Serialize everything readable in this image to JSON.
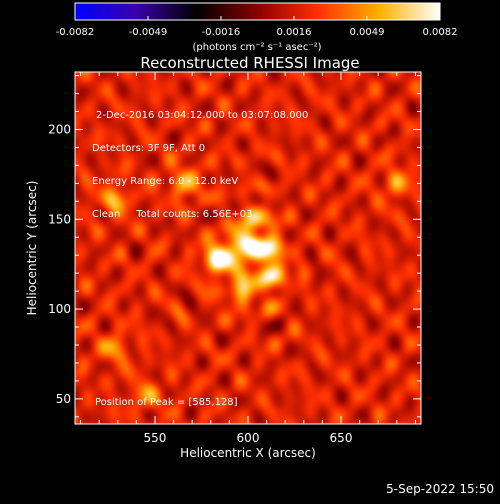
{
  "chart_data": {
    "type": "heatmap",
    "title": "Reconstructed RHESSI Image",
    "xlabel": "Heliocentric X (arcsec)",
    "ylabel": "Heliocentric Y (arcsec)",
    "xlim": [
      507,
      693
    ],
    "ylim": [
      36,
      232
    ],
    "x_ticks": [
      550,
      600,
      650
    ],
    "y_ticks": [
      50,
      100,
      150,
      200
    ],
    "grid": false,
    "colormap": "diverging blue-black-red-yellow-white",
    "colorbar": {
      "min": -0.0082,
      "max": 0.0082,
      "ticks": [
        "-0.0082",
        "-0.0049",
        "-0.0016",
        "0.0016",
        "0.0049",
        "0.0082"
      ],
      "units": "(photons cm⁻² s⁻¹ asec⁻²)",
      "stops": [
        "#0000ff",
        "#3a00aa",
        "#000000",
        "#8a0000",
        "#ff3000",
        "#ffb000",
        "#ffffff"
      ]
    },
    "annotations": [
      "2-Dec-2016 03:04:12.000 to 03:07:08.000",
      "Detectors: 3F 9F, Att 0",
      "Energy Range: 6.0 - 12.0 keV",
      "Clean     Total counts: 6.56E+03"
    ],
    "peak_text": "Position of Peak = [585,128]",
    "peak": [
      585,
      128
    ],
    "sources": [
      {
        "x": 585,
        "y": 128,
        "flux": 0.0082
      },
      {
        "x": 598,
        "y": 136,
        "flux": 0.006
      },
      {
        "x": 610,
        "y": 133,
        "flux": 0.0064
      },
      {
        "x": 612,
        "y": 118,
        "flux": 0.0052
      },
      {
        "x": 597,
        "y": 110,
        "flux": 0.0045
      },
      {
        "x": 604,
        "y": 150,
        "flux": 0.0042
      },
      {
        "x": 566,
        "y": 170,
        "flux": 0.004
      },
      {
        "x": 528,
        "y": 161,
        "flux": 0.0035
      },
      {
        "x": 528,
        "y": 78,
        "flux": 0.003
      },
      {
        "x": 545,
        "y": 52,
        "flux": 0.0028
      },
      {
        "x": 680,
        "y": 170,
        "flux": 0.003
      }
    ]
  },
  "footer": {
    "timestamp": "5-Sep-2022 15:50"
  }
}
